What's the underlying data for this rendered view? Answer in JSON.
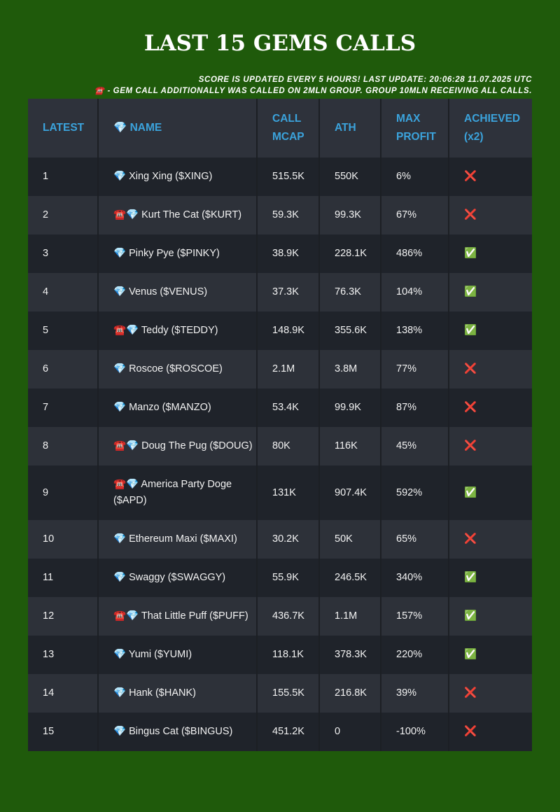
{
  "header": {
    "title": "LAST 15 GEMS CALLS",
    "notes": [
      "SCORE IS UPDATED EVERY 5 HOURS! LAST UPDATE: 20:06:28 11.07.2025 UTC",
      "☎️ - GEM CALL ADDITIONALLY WAS CALLED ON 2MLN GROUP. GROUP 10MLN RECEIVING ALL CALLS."
    ]
  },
  "table": {
    "columns": [
      "LATEST",
      "💎 NAME",
      "CALL MCAP",
      "ATH",
      "MAX PROFIT",
      "ACHIEVED (x2)"
    ],
    "rows": [
      [
        "1",
        "💎 Xing Xing ($XING)",
        "515.5K",
        "550K",
        "6%",
        "❌"
      ],
      [
        "2",
        "☎️💎 Kurt The Cat ($KURT)",
        "59.3K",
        "99.3K",
        "67%",
        "❌"
      ],
      [
        "3",
        "💎 Pinky Pye ($PINKY)",
        "38.9K",
        "228.1K",
        "486%",
        "✅"
      ],
      [
        "4",
        "💎 Venus ($VENUS)",
        "37.3K",
        "76.3K",
        "104%",
        "✅"
      ],
      [
        "5",
        "☎️💎 Teddy ($TEDDY)",
        "148.9K",
        "355.6K",
        "138%",
        "✅"
      ],
      [
        "6",
        "💎 Roscoe ($ROSCOE)",
        "2.1M",
        "3.8M",
        "77%",
        "❌"
      ],
      [
        "7",
        "💎 Manzo ($MANZO)",
        "53.4K",
        "99.9K",
        "87%",
        "❌"
      ],
      [
        "8",
        "☎️💎 Doug The Pug ($DOUG)",
        "80K",
        "116K",
        "45%",
        "❌"
      ],
      [
        "9",
        "☎️💎 America Party Doge ($APD)",
        "131K",
        "907.4K",
        "592%",
        "✅"
      ],
      [
        "10",
        "💎 Ethereum Maxi ($MAXI)",
        "30.2K",
        "50K",
        "65%",
        "❌"
      ],
      [
        "11",
        "💎 Swaggy ($SWAGGY)",
        "55.9K",
        "246.5K",
        "340%",
        "✅"
      ],
      [
        "12",
        "☎️💎 That Little Puff ($PUFF)",
        "436.7K",
        "1.1M",
        "157%",
        "✅"
      ],
      [
        "13",
        "💎 Yumi ($YUMI)",
        "118.1K",
        "378.3K",
        "220%",
        "✅"
      ],
      [
        "14",
        "💎 Hank ($HANK)",
        "155.5K",
        "216.8K",
        "39%",
        "❌"
      ],
      [
        "15",
        "💎 Bingus Cat ($BINGUS)",
        "451.2K",
        "0",
        "-100%",
        "❌"
      ]
    ]
  }
}
